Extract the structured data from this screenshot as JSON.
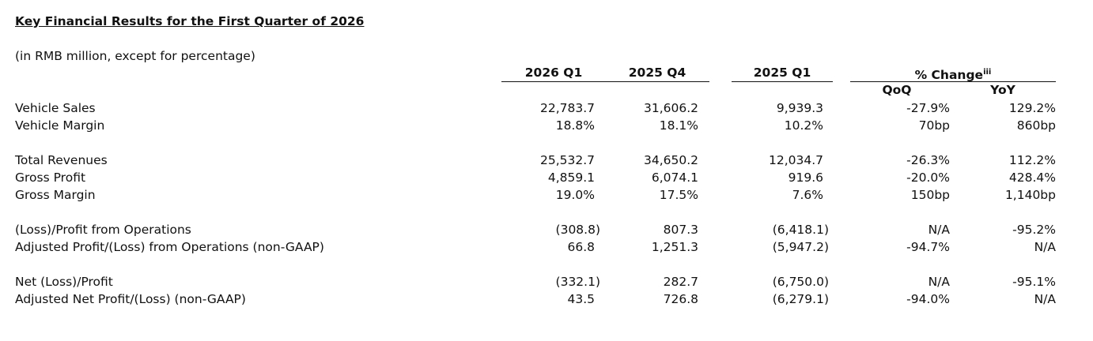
{
  "header": {
    "title": "Key Financial Results for the First Quarter of 2026",
    "subtitle": "(in RMB million, except for percentage)"
  },
  "table": {
    "columns": [
      "2026 Q1",
      "2025 Q4",
      "2025 Q1"
    ],
    "change": {
      "label": "% Change",
      "note": "iii",
      "subcolumns": [
        "QoQ",
        "YoY"
      ]
    },
    "groups": [
      [
        [
          "Vehicle Sales",
          "22,783.7",
          "31,606.2",
          "9,939.3",
          "-27.9%",
          "129.2%"
        ],
        [
          "Vehicle Margin",
          "18.8%",
          "18.1%",
          "10.2%",
          "70bp",
          "860bp"
        ]
      ],
      [
        [
          "Total Revenues",
          "25,532.7",
          "34,650.2",
          "12,034.7",
          "-26.3%",
          "112.2%"
        ],
        [
          "Gross Profit",
          "4,859.1",
          "6,074.1",
          "919.6",
          "-20.0%",
          "428.4%"
        ],
        [
          "Gross Margin",
          "19.0%",
          "17.5%",
          "7.6%",
          "150bp",
          "1,140bp"
        ]
      ],
      [
        [
          "(Loss)/Profit from Operations",
          "(308.8)",
          "807.3",
          "(6,418.1)",
          "N/A",
          "-95.2%"
        ],
        [
          "Adjusted Profit/(Loss) from Operations (non-GAAP)",
          "66.8",
          "1,251.3",
          "(5,947.2)",
          "-94.7%",
          "N/A"
        ]
      ],
      [
        [
          "Net (Loss)/Profit",
          "(332.1)",
          "282.7",
          "(6,750.0)",
          "N/A",
          "-95.1%"
        ],
        [
          "Adjusted Net Profit/(Loss) (non-GAAP)",
          "43.5",
          "726.8",
          "(6,279.1)",
          "-94.0%",
          "N/A"
        ]
      ]
    ]
  }
}
